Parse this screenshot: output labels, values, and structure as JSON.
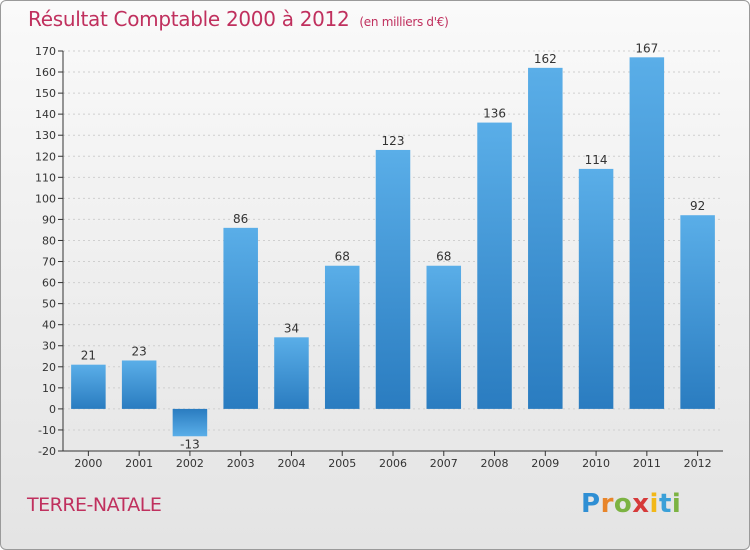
{
  "header": {
    "title": "Résultat Comptable 2000 à 2012",
    "subtitle": "(en milliers d'€)"
  },
  "footer": {
    "commune": "TERRE-NATALE",
    "logo_text": "Proxiti"
  },
  "colors": {
    "title": "#c0305e",
    "bar_top": "#5aaee8",
    "bar_bottom": "#2a7cc0",
    "grid": "#cfcfcf"
  },
  "chart_data": {
    "type": "bar",
    "title": "Résultat Comptable 2000 à 2012",
    "subtitle": "(en milliers d'€)",
    "xlabel": "",
    "ylabel": "",
    "categories": [
      "2000",
      "2001",
      "2002",
      "2003",
      "2004",
      "2005",
      "2006",
      "2007",
      "2008",
      "2009",
      "2010",
      "2011",
      "2012"
    ],
    "values": [
      21,
      23,
      -13,
      86,
      34,
      68,
      123,
      68,
      136,
      162,
      114,
      167,
      92
    ],
    "value_labels": [
      "21",
      "23",
      "-13",
      "86",
      "34",
      "68",
      "123",
      "68",
      "136",
      "162",
      "114",
      "167",
      "92"
    ],
    "ylim": [
      -20,
      170
    ],
    "yticks": [
      -20,
      -10,
      0,
      10,
      20,
      30,
      40,
      50,
      60,
      70,
      80,
      90,
      100,
      110,
      120,
      130,
      140,
      150,
      160,
      170
    ],
    "grid": true,
    "legend": "none"
  }
}
